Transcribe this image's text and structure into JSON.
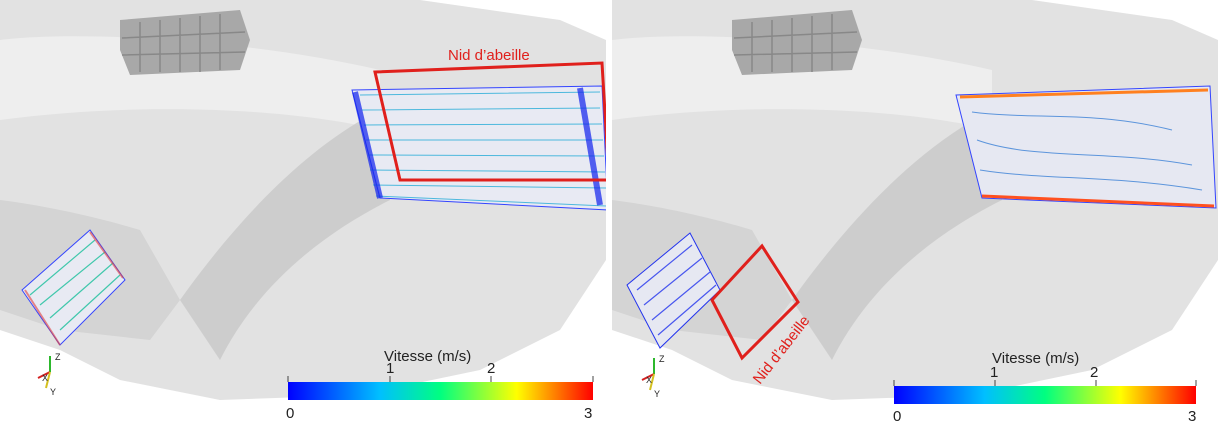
{
  "panels": [
    {
      "annotation": "Nid d’abeille",
      "colorbar": {
        "title": "Vitesse (m/s)",
        "ticks": [
          "0",
          "1",
          "2",
          "3"
        ]
      },
      "axes": {
        "z": "Z",
        "x": "X",
        "y": "Y"
      }
    },
    {
      "annotation": "Nid d’abeille",
      "colorbar": {
        "title": "Vitesse (m/s)",
        "ticks": [
          "0",
          "1",
          "2",
          "3"
        ]
      },
      "axes": {
        "z": "Z",
        "x": "X",
        "y": "Y"
      }
    }
  ],
  "colors": {
    "annotation": "#e0201c",
    "colormap": [
      "#0000ff",
      "#00bfff",
      "#00ff80",
      "#ffff00",
      "#ff0000"
    ],
    "geometry": "#dcdcdc"
  }
}
